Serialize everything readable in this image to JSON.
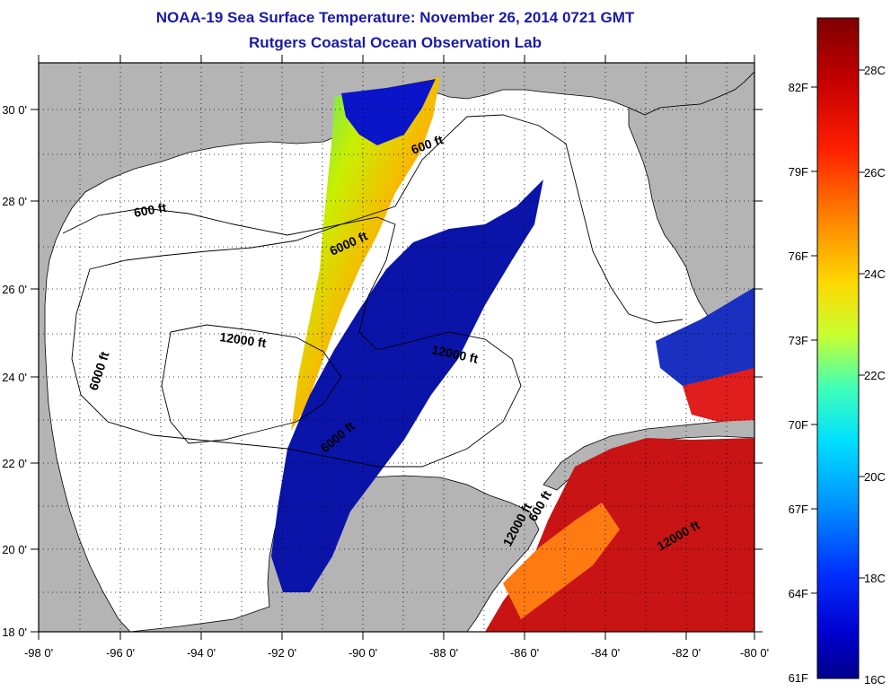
{
  "title": "NOAA-19 Sea Surface Temperature:  November 26, 2014 0721 GMT",
  "subtitle": "Rutgers Coastal Ocean Observation Lab",
  "map": {
    "lon_range": [
      -98,
      -80
    ],
    "lat_range": [
      18,
      31
    ],
    "lon_ticks": [
      "-98 0'",
      "-96 0'",
      "-94 0'",
      "-92 0'",
      "-90 0'",
      "-88 0'",
      "-86 0'",
      "-84 0'",
      "-82 0'",
      "-80 0'"
    ],
    "lat_ticks": [
      "18 0'",
      "20 0'",
      "22 0'",
      "24 0'",
      "26 0'",
      "28 0'",
      "30 0'"
    ],
    "land_color": "#b4b4b4",
    "water_color": "#ffffff",
    "grid": "dotted",
    "contour_labels": [
      "600 ft",
      "600 ft",
      "6000 ft",
      "6000 ft",
      "12000 ft",
      "12000 ft",
      "12000 ft",
      "12000 ft",
      "6000 ft",
      "600 ft"
    ]
  },
  "colorbar": {
    "fahrenheit_labels": [
      "82F",
      "79F",
      "76F",
      "73F",
      "70F",
      "67F",
      "64F",
      "61F"
    ],
    "celsius_labels": [
      "28C",
      "26C",
      "24C",
      "22C",
      "20C",
      "18C",
      "16C"
    ],
    "colors": [
      "#7f0000",
      "#d40000",
      "#ff4a00",
      "#ff9a00",
      "#ffe800",
      "#b4ff4a",
      "#4affb4",
      "#00e0ff",
      "#008cff",
      "#0030ff",
      "#0000c8",
      "#00008c"
    ]
  }
}
